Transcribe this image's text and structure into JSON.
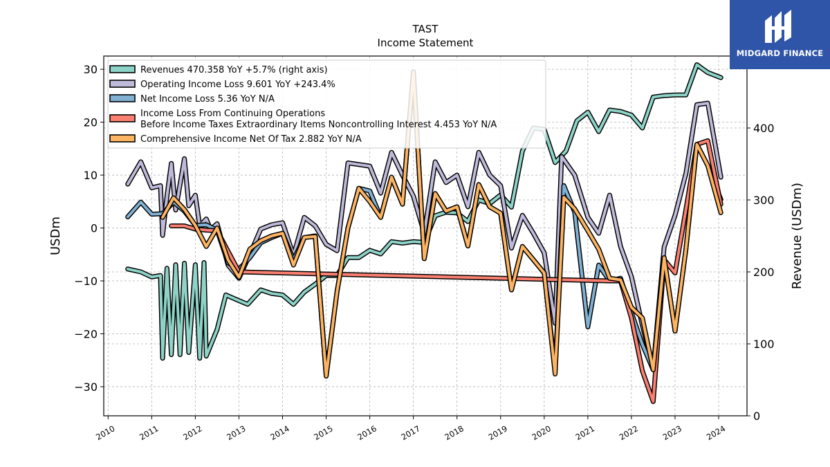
{
  "brand": {
    "name": "MIDGARD FINANCE",
    "color": "#2f55a8"
  },
  "chart_data": {
    "type": "line",
    "title": "TAST",
    "subtitle": "Income Statement",
    "ylabel": "USDm",
    "ylabel_right": "Revenue (USDm)",
    "ylim": [
      -35.5,
      32.5
    ],
    "ylim_right": [
      0,
      500
    ],
    "xlim": [
      2009.9,
      2024.65
    ],
    "yticks": [
      -30,
      -20,
      -10,
      0,
      10,
      20,
      30
    ],
    "yticks_right": [
      0,
      100,
      200,
      300,
      400
    ],
    "xticks": [
      2010,
      2011,
      2012,
      2013,
      2014,
      2015,
      2016,
      2017,
      2018,
      2019,
      2020,
      2021,
      2022,
      2023,
      2024
    ],
    "grid": true,
    "legend_position": "top-left",
    "series": [
      {
        "name": "Revenues",
        "legend": "Revenues  470.358 YoY +5.7% (right axis)",
        "color": "#8dd3c7",
        "axis": "right",
        "points": [
          [
            2010.45,
            204
          ],
          [
            2010.75,
            200
          ],
          [
            2011.0,
            193
          ],
          [
            2011.2,
            195
          ],
          [
            2011.25,
            80
          ],
          [
            2011.35,
            205
          ],
          [
            2011.45,
            85
          ],
          [
            2011.55,
            210
          ],
          [
            2011.65,
            85
          ],
          [
            2011.75,
            212
          ],
          [
            2011.85,
            88
          ],
          [
            2012.0,
            210
          ],
          [
            2012.1,
            80
          ],
          [
            2012.2,
            213
          ],
          [
            2012.25,
            83
          ],
          [
            2012.5,
            120
          ],
          [
            2012.7,
            168
          ],
          [
            2013.0,
            160
          ],
          [
            2013.2,
            155
          ],
          [
            2013.5,
            175
          ],
          [
            2013.75,
            170
          ],
          [
            2014.0,
            168
          ],
          [
            2014.25,
            155
          ],
          [
            2014.5,
            172
          ],
          [
            2014.75,
            183
          ],
          [
            2015.0,
            195
          ],
          [
            2015.25,
            195
          ],
          [
            2015.5,
            220
          ],
          [
            2015.75,
            220
          ],
          [
            2016.0,
            230
          ],
          [
            2016.25,
            225
          ],
          [
            2016.5,
            242
          ],
          [
            2016.75,
            240
          ],
          [
            2017.0,
            242
          ],
          [
            2017.25,
            241
          ],
          [
            2017.5,
            278
          ],
          [
            2017.75,
            283
          ],
          [
            2018.0,
            282
          ],
          [
            2018.25,
            270
          ],
          [
            2018.5,
            300
          ],
          [
            2018.75,
            295
          ],
          [
            2019.0,
            307
          ],
          [
            2019.25,
            290
          ],
          [
            2019.5,
            368
          ],
          [
            2019.75,
            400
          ],
          [
            2020.0,
            398
          ],
          [
            2020.25,
            352
          ],
          [
            2020.5,
            368
          ],
          [
            2020.75,
            410
          ],
          [
            2021.0,
            422
          ],
          [
            2021.25,
            395
          ],
          [
            2021.5,
            425
          ],
          [
            2021.75,
            423
          ],
          [
            2022.0,
            418
          ],
          [
            2022.25,
            400
          ],
          [
            2022.5,
            443
          ],
          [
            2022.75,
            445
          ],
          [
            2023.0,
            446
          ],
          [
            2023.25,
            446
          ],
          [
            2023.5,
            488
          ],
          [
            2023.75,
            477
          ],
          [
            2024.05,
            470
          ]
        ]
      },
      {
        "name": "Operating Income Loss",
        "legend": "Operating Income Loss  9.601 YoY +243.4%",
        "color": "#bebada",
        "axis": "left",
        "points": [
          [
            2010.45,
            8.3
          ],
          [
            2010.75,
            12.5
          ],
          [
            2011.0,
            7.6
          ],
          [
            2011.2,
            8.0
          ],
          [
            2011.25,
            -1.4
          ],
          [
            2011.35,
            6.0
          ],
          [
            2011.45,
            12.2
          ],
          [
            2011.55,
            3.4
          ],
          [
            2011.75,
            13.1
          ],
          [
            2011.85,
            4.2
          ],
          [
            2012.0,
            6.2
          ],
          [
            2012.1,
            0.4
          ],
          [
            2012.25,
            1.7
          ],
          [
            2012.35,
            -0.3
          ],
          [
            2012.5,
            0.8
          ],
          [
            2012.75,
            -7.0
          ],
          [
            2013.0,
            -9.5
          ],
          [
            2013.25,
            -5.0
          ],
          [
            2013.5,
            -0.2
          ],
          [
            2013.75,
            0.6
          ],
          [
            2014.0,
            1.0
          ],
          [
            2014.25,
            -5.2
          ],
          [
            2014.5,
            2.0
          ],
          [
            2014.75,
            0.4
          ],
          [
            2015.0,
            -3.1
          ],
          [
            2015.25,
            -4.3
          ],
          [
            2015.5,
            12.3
          ],
          [
            2015.75,
            12.0
          ],
          [
            2016.0,
            11.7
          ],
          [
            2016.25,
            6.6
          ],
          [
            2016.5,
            14.3
          ],
          [
            2016.75,
            10.0
          ],
          [
            2017.0,
            6.0
          ],
          [
            2017.25,
            -1.0
          ],
          [
            2017.5,
            12.5
          ],
          [
            2017.75,
            8.6
          ],
          [
            2018.0,
            10.0
          ],
          [
            2018.25,
            4.0
          ],
          [
            2018.5,
            14.3
          ],
          [
            2018.75,
            10.0
          ],
          [
            2019.0,
            8.0
          ],
          [
            2019.25,
            -3.8
          ],
          [
            2019.5,
            2.4
          ],
          [
            2019.75,
            -1.0
          ],
          [
            2020.0,
            -4.7
          ],
          [
            2020.25,
            -18.0
          ],
          [
            2020.4,
            13.5
          ],
          [
            2020.7,
            10.0
          ],
          [
            2021.0,
            2.0
          ],
          [
            2021.25,
            -1.0
          ],
          [
            2021.5,
            6.2
          ],
          [
            2021.75,
            -3.5
          ],
          [
            2022.0,
            -9.2
          ],
          [
            2022.25,
            -18.4
          ],
          [
            2022.5,
            -26.6
          ],
          [
            2022.75,
            -3.6
          ],
          [
            2023.0,
            2.4
          ],
          [
            2023.25,
            10.3
          ],
          [
            2023.5,
            23.3
          ],
          [
            2023.75,
            23.6
          ],
          [
            2024.05,
            9.6
          ]
        ]
      },
      {
        "name": "Net Income Loss",
        "legend": "Net Income Loss  5.36 YoY N/A",
        "color": "#80b1d3",
        "axis": "left",
        "points": [
          [
            2010.45,
            2.1
          ],
          [
            2010.75,
            4.9
          ],
          [
            2011.0,
            2.6
          ],
          [
            2011.25,
            2.7
          ],
          [
            2011.5,
            4.9
          ],
          [
            2011.75,
            3.2
          ],
          [
            2012.0,
            0.5
          ],
          [
            2012.25,
            0.6
          ],
          [
            2012.5,
            -0.4
          ],
          [
            2012.75,
            -6.6
          ],
          [
            2013.0,
            -7.8
          ],
          [
            2013.25,
            -5.6
          ],
          [
            2013.5,
            -2.8
          ],
          [
            2013.75,
            -1.8
          ],
          [
            2014.0,
            -1.0
          ],
          [
            2014.25,
            -6.0
          ],
          [
            2014.5,
            -1.8
          ],
          [
            2014.75,
            -1.5
          ],
          [
            2015.0,
            -28.0
          ],
          [
            2015.25,
            -12.0
          ],
          [
            2015.5,
            0.0
          ],
          [
            2015.75,
            7.5
          ],
          [
            2016.0,
            7.0
          ],
          [
            2016.25,
            2.0
          ],
          [
            2016.5,
            9.6
          ],
          [
            2016.75,
            4.5
          ],
          [
            2017.0,
            29.5
          ],
          [
            2017.25,
            -5.8
          ],
          [
            2017.5,
            6.5
          ],
          [
            2017.75,
            3.2
          ],
          [
            2018.0,
            4.0
          ],
          [
            2018.25,
            -3.4
          ],
          [
            2018.5,
            8.2
          ],
          [
            2018.75,
            4.0
          ],
          [
            2019.0,
            2.8
          ],
          [
            2019.25,
            -11.7
          ],
          [
            2019.5,
            -3.5
          ],
          [
            2019.75,
            -6.0
          ],
          [
            2020.0,
            -8.5
          ],
          [
            2020.25,
            -27.0
          ],
          [
            2020.45,
            8.0
          ],
          [
            2020.7,
            3.0
          ],
          [
            2021.0,
            -18.7
          ],
          [
            2021.25,
            -7.0
          ],
          [
            2021.5,
            -10.0
          ],
          [
            2021.75,
            -9.5
          ],
          [
            2022.0,
            -16.0
          ],
          [
            2022.25,
            -22.0
          ],
          [
            2022.5,
            -26.8
          ],
          [
            2022.75,
            -5.6
          ],
          [
            2023.0,
            -19.5
          ],
          [
            2023.25,
            -4.0
          ],
          [
            2023.5,
            15.8
          ],
          [
            2023.75,
            11.8
          ],
          [
            2024.05,
            5.4
          ]
        ]
      },
      {
        "name": "Income Loss From Continuing Operations Before Income Taxes Extraordinary Items Noncontrolling Interest",
        "legend_line1": "Income Loss From Continuing Operations",
        "legend_line2": "Before Income Taxes Extraordinary Items Noncontrolling Interest  4.453 YoY N/A",
        "color": "#fb8072",
        "axis": "left",
        "points": [
          [
            2011.45,
            0.4
          ],
          [
            2011.75,
            0.4
          ],
          [
            2012.0,
            -0.2
          ],
          [
            2012.25,
            -0.4
          ],
          [
            2012.5,
            -0.5
          ],
          [
            2013.0,
            -8.3
          ],
          [
            2021.5,
            -10.0
          ],
          [
            2021.75,
            -10.0
          ],
          [
            2022.0,
            -17.0
          ],
          [
            2022.25,
            -27.0
          ],
          [
            2022.5,
            -32.8
          ],
          [
            2022.75,
            -6.0
          ],
          [
            2023.0,
            -8.5
          ],
          [
            2023.25,
            3.5
          ],
          [
            2023.5,
            15.8
          ],
          [
            2023.75,
            16.5
          ],
          [
            2024.05,
            4.5
          ]
        ]
      },
      {
        "name": "Comprehensive Income Net Of Tax",
        "legend": "Comprehensive Income Net Of Tax  2.882 YoY N/A",
        "color": "#fdb462",
        "axis": "left",
        "points": [
          [
            2011.25,
            2.0
          ],
          [
            2011.5,
            5.7
          ],
          [
            2011.75,
            3.5
          ],
          [
            2012.0,
            0.5
          ],
          [
            2012.25,
            -3.5
          ],
          [
            2012.5,
            0.0
          ],
          [
            2012.75,
            -6.0
          ],
          [
            2013.0,
            -9.3
          ],
          [
            2013.25,
            -4.0
          ],
          [
            2013.5,
            -2.4
          ],
          [
            2013.75,
            -1.5
          ],
          [
            2014.0,
            -1.0
          ],
          [
            2014.25,
            -7.0
          ],
          [
            2014.5,
            -1.8
          ],
          [
            2014.75,
            -1.6
          ],
          [
            2015.0,
            -28.0
          ],
          [
            2015.25,
            -12.0
          ],
          [
            2015.5,
            0.0
          ],
          [
            2015.75,
            7.5
          ],
          [
            2016.0,
            5.0
          ],
          [
            2016.25,
            2.0
          ],
          [
            2016.5,
            9.6
          ],
          [
            2016.75,
            4.5
          ],
          [
            2017.0,
            29.5
          ],
          [
            2017.25,
            -5.8
          ],
          [
            2017.5,
            6.5
          ],
          [
            2017.75,
            3.2
          ],
          [
            2018.0,
            4.0
          ],
          [
            2018.25,
            -3.4
          ],
          [
            2018.5,
            8.2
          ],
          [
            2018.75,
            4.0
          ],
          [
            2019.0,
            2.8
          ],
          [
            2019.25,
            -11.7
          ],
          [
            2019.5,
            -3.5
          ],
          [
            2019.75,
            -6.0
          ],
          [
            2020.0,
            -8.5
          ],
          [
            2020.25,
            -27.6
          ],
          [
            2020.45,
            5.8
          ],
          [
            2020.7,
            3.6
          ],
          [
            2021.0,
            -0.5
          ],
          [
            2021.25,
            -4.0
          ],
          [
            2021.5,
            -9.5
          ],
          [
            2021.75,
            -9.8
          ],
          [
            2022.0,
            -15.0
          ],
          [
            2022.25,
            -17.0
          ],
          [
            2022.5,
            -26.8
          ],
          [
            2022.75,
            -5.6
          ],
          [
            2023.0,
            -19.5
          ],
          [
            2023.25,
            -4.0
          ],
          [
            2023.5,
            15.8
          ],
          [
            2023.75,
            11.8
          ],
          [
            2024.05,
            2.9
          ]
        ]
      }
    ]
  }
}
